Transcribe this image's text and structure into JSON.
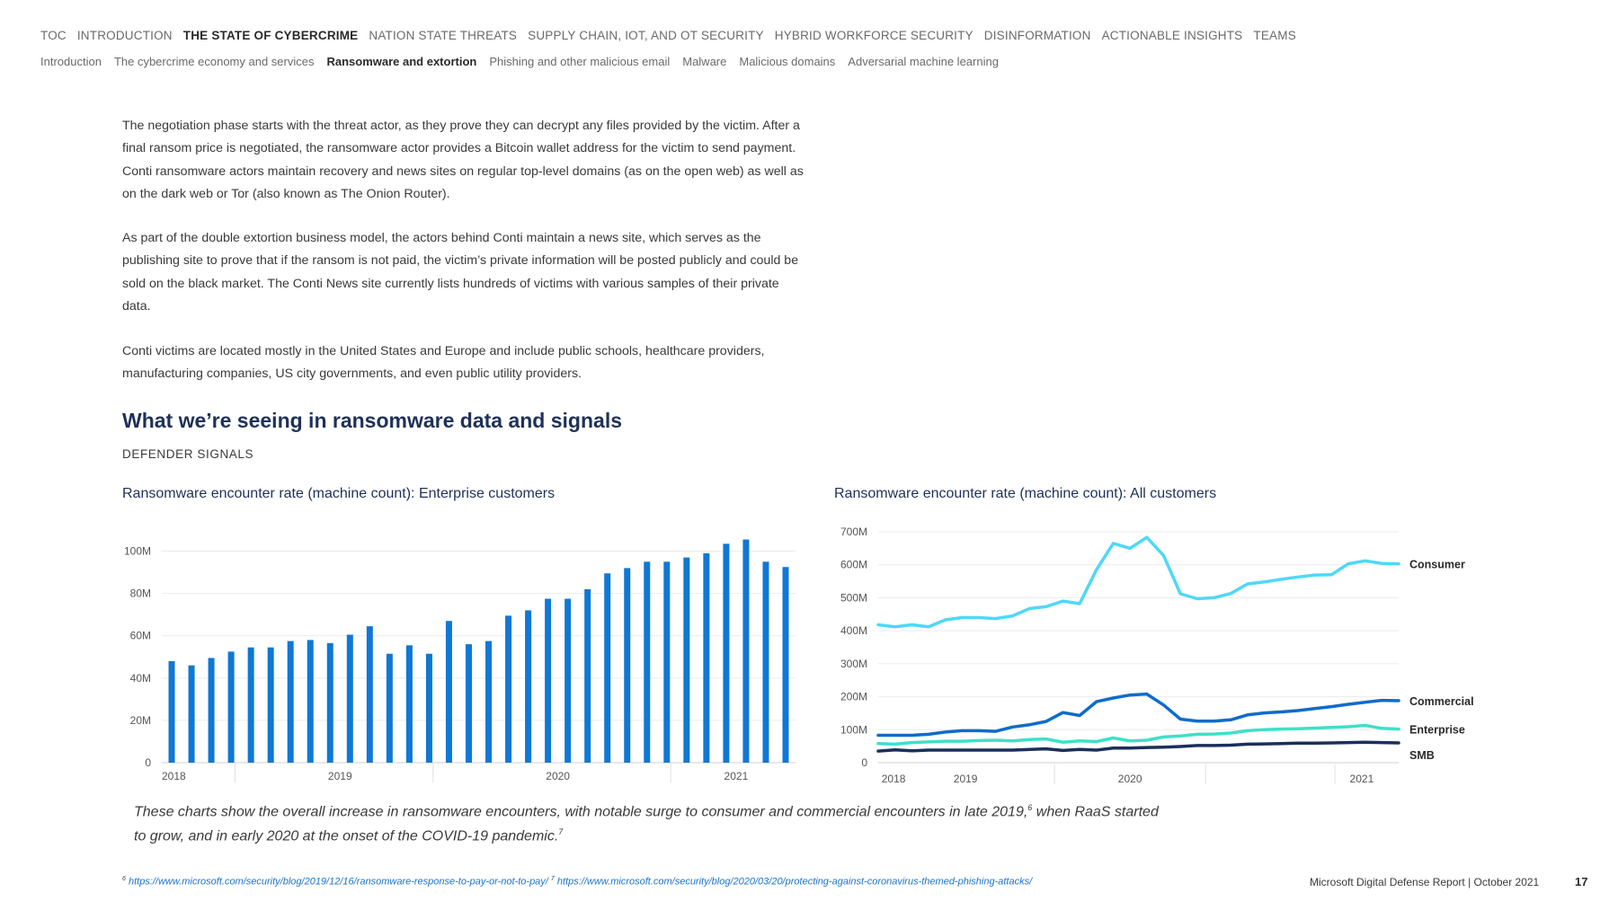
{
  "nav": {
    "primary": [
      {
        "label": "TOC",
        "active": false
      },
      {
        "label": "INTRODUCTION",
        "active": false
      },
      {
        "label": "THE STATE OF CYBERCRIME",
        "active": true
      },
      {
        "label": "NATION STATE THREATS",
        "active": false
      },
      {
        "label": "SUPPLY CHAIN, IOT, AND OT SECURITY",
        "active": false
      },
      {
        "label": "HYBRID WORKFORCE SECURITY",
        "active": false
      },
      {
        "label": "DISINFORMATION",
        "active": false
      },
      {
        "label": "ACTIONABLE INSIGHTS",
        "active": false
      },
      {
        "label": "TEAMS",
        "active": false
      }
    ],
    "secondary": [
      {
        "label": "Introduction",
        "active": false
      },
      {
        "label": "The cybercrime economy and services",
        "active": false
      },
      {
        "label": "Ransomware and extortion",
        "active": true
      },
      {
        "label": "Phishing and other malicious email",
        "active": false
      },
      {
        "label": "Malware",
        "active": false
      },
      {
        "label": "Malicious domains",
        "active": false
      },
      {
        "label": "Adversarial machine learning",
        "active": false
      }
    ]
  },
  "paragraphs": [
    "The negotiation phase starts with the threat actor, as they prove they can decrypt any files provided by the victim. After a final ransom price is negotiated, the ransomware actor provides a Bitcoin wallet address for the victim to send payment. Conti ransomware actors maintain recovery and news sites on regular top-level domains (as on the open web) as well as on the dark web or Tor (also known as The Onion Router).",
    "As part of the double extortion business model, the actors behind Conti maintain a news site, which serves as the publishing site to prove that if the ransom is not paid, the victim’s private information will be posted publicly and could be sold on the black market. The Conti News site currently lists hundreds of victims with various samples of their private data.",
    "Conti victims are located mostly in the United States and Europe and include public schools, healthcare providers, manufacturing companies, US city governments, and even public utility providers."
  ],
  "section": {
    "heading": "What we’re seeing in ransomware data and signals",
    "subheading": "DEFENDER SIGNALS"
  },
  "chart_data": [
    {
      "type": "bar",
      "title": "Ransomware encounter rate (machine count): Enterprise customers",
      "ytick_labels": [
        "0",
        "20M",
        "40M",
        "60M",
        "80M",
        "100M"
      ],
      "ylim": [
        0,
        110
      ],
      "unit": "M",
      "year_labels": [
        "2018",
        "2019",
        "2020",
        "2021"
      ],
      "values": [
        48,
        46,
        49.5,
        52.5,
        54.5,
        54.5,
        57.5,
        58,
        56.5,
        60.5,
        64.5,
        51.5,
        55.5,
        51.5,
        67,
        56,
        57.5,
        69.5,
        72,
        77.5,
        77.5,
        82,
        89.5,
        92,
        95,
        95,
        97,
        99,
        103.5,
        105.5,
        95,
        92.5
      ],
      "color": "#0f78d4",
      "grid": true
    },
    {
      "type": "line",
      "title": "Ransomware encounter rate (machine count): All customers",
      "ytick_labels": [
        "0",
        "100M",
        "200M",
        "300M",
        "400M",
        "500M",
        "600M",
        "700M"
      ],
      "ylim": [
        0,
        700
      ],
      "unit": "M",
      "year_labels": [
        "2018",
        "2019",
        "2020",
        "2021"
      ],
      "grid": true,
      "series": [
        {
          "name": "Consumer",
          "color": "#4fd8f7",
          "values": [
            418,
            412,
            418,
            412,
            433,
            440,
            440,
            437,
            445,
            467,
            473,
            490,
            482,
            585,
            665,
            650,
            683,
            628,
            512,
            497,
            500,
            513,
            542,
            548,
            556,
            563,
            569,
            570,
            603,
            612,
            604,
            603
          ]
        },
        {
          "name": "Commercial",
          "color": "#0f6cc9",
          "values": [
            83,
            83,
            83,
            86,
            93,
            97,
            97,
            95,
            108,
            115,
            125,
            152,
            143,
            185,
            196,
            205,
            208,
            175,
            132,
            126,
            126,
            130,
            145,
            151,
            154,
            158,
            164,
            170,
            177,
            183,
            189,
            188
          ]
        },
        {
          "name": "Enterprise",
          "color": "#3ee0c8",
          "values": [
            58,
            56,
            61,
            63,
            65,
            65,
            67,
            68,
            66,
            70,
            72,
            62,
            66,
            64,
            75,
            66,
            68,
            78,
            81,
            86,
            87,
            90,
            97,
            100,
            102,
            103,
            105,
            107,
            109,
            113,
            104,
            102
          ]
        },
        {
          "name": "SMB",
          "color": "#1b2f5c",
          "values": [
            35,
            39,
            36,
            38,
            38,
            38,
            38,
            38,
            38,
            40,
            42,
            37,
            40,
            38,
            44,
            44,
            46,
            47,
            49,
            52,
            52,
            53,
            56,
            57,
            58,
            59,
            59,
            60,
            61,
            62,
            61,
            60
          ]
        }
      ]
    }
  ],
  "caption": {
    "text": "These charts show the overall increase in ransomware encounters, with notable surge to consumer and commercial encounters in late 2019,",
    "sup1": "6",
    "text2": " when RaaS started to grow, and in early 2020 at the onset of the COVID-19 pandemic.",
    "sup2": "7"
  },
  "footnotes": [
    {
      "num": "6",
      "url": "https://www.microsoft.com/security/blog/2019/12/16/ransomware-response-to-pay-or-not-to-pay/"
    },
    {
      "num": "7",
      "url": "https://www.microsoft.com/security/blog/2020/03/20/protecting-against-coronavirus-themed-phishing-attacks/"
    }
  ],
  "footer": {
    "report": "Microsoft Digital Defense Report  |  October 2021",
    "page": "17"
  }
}
